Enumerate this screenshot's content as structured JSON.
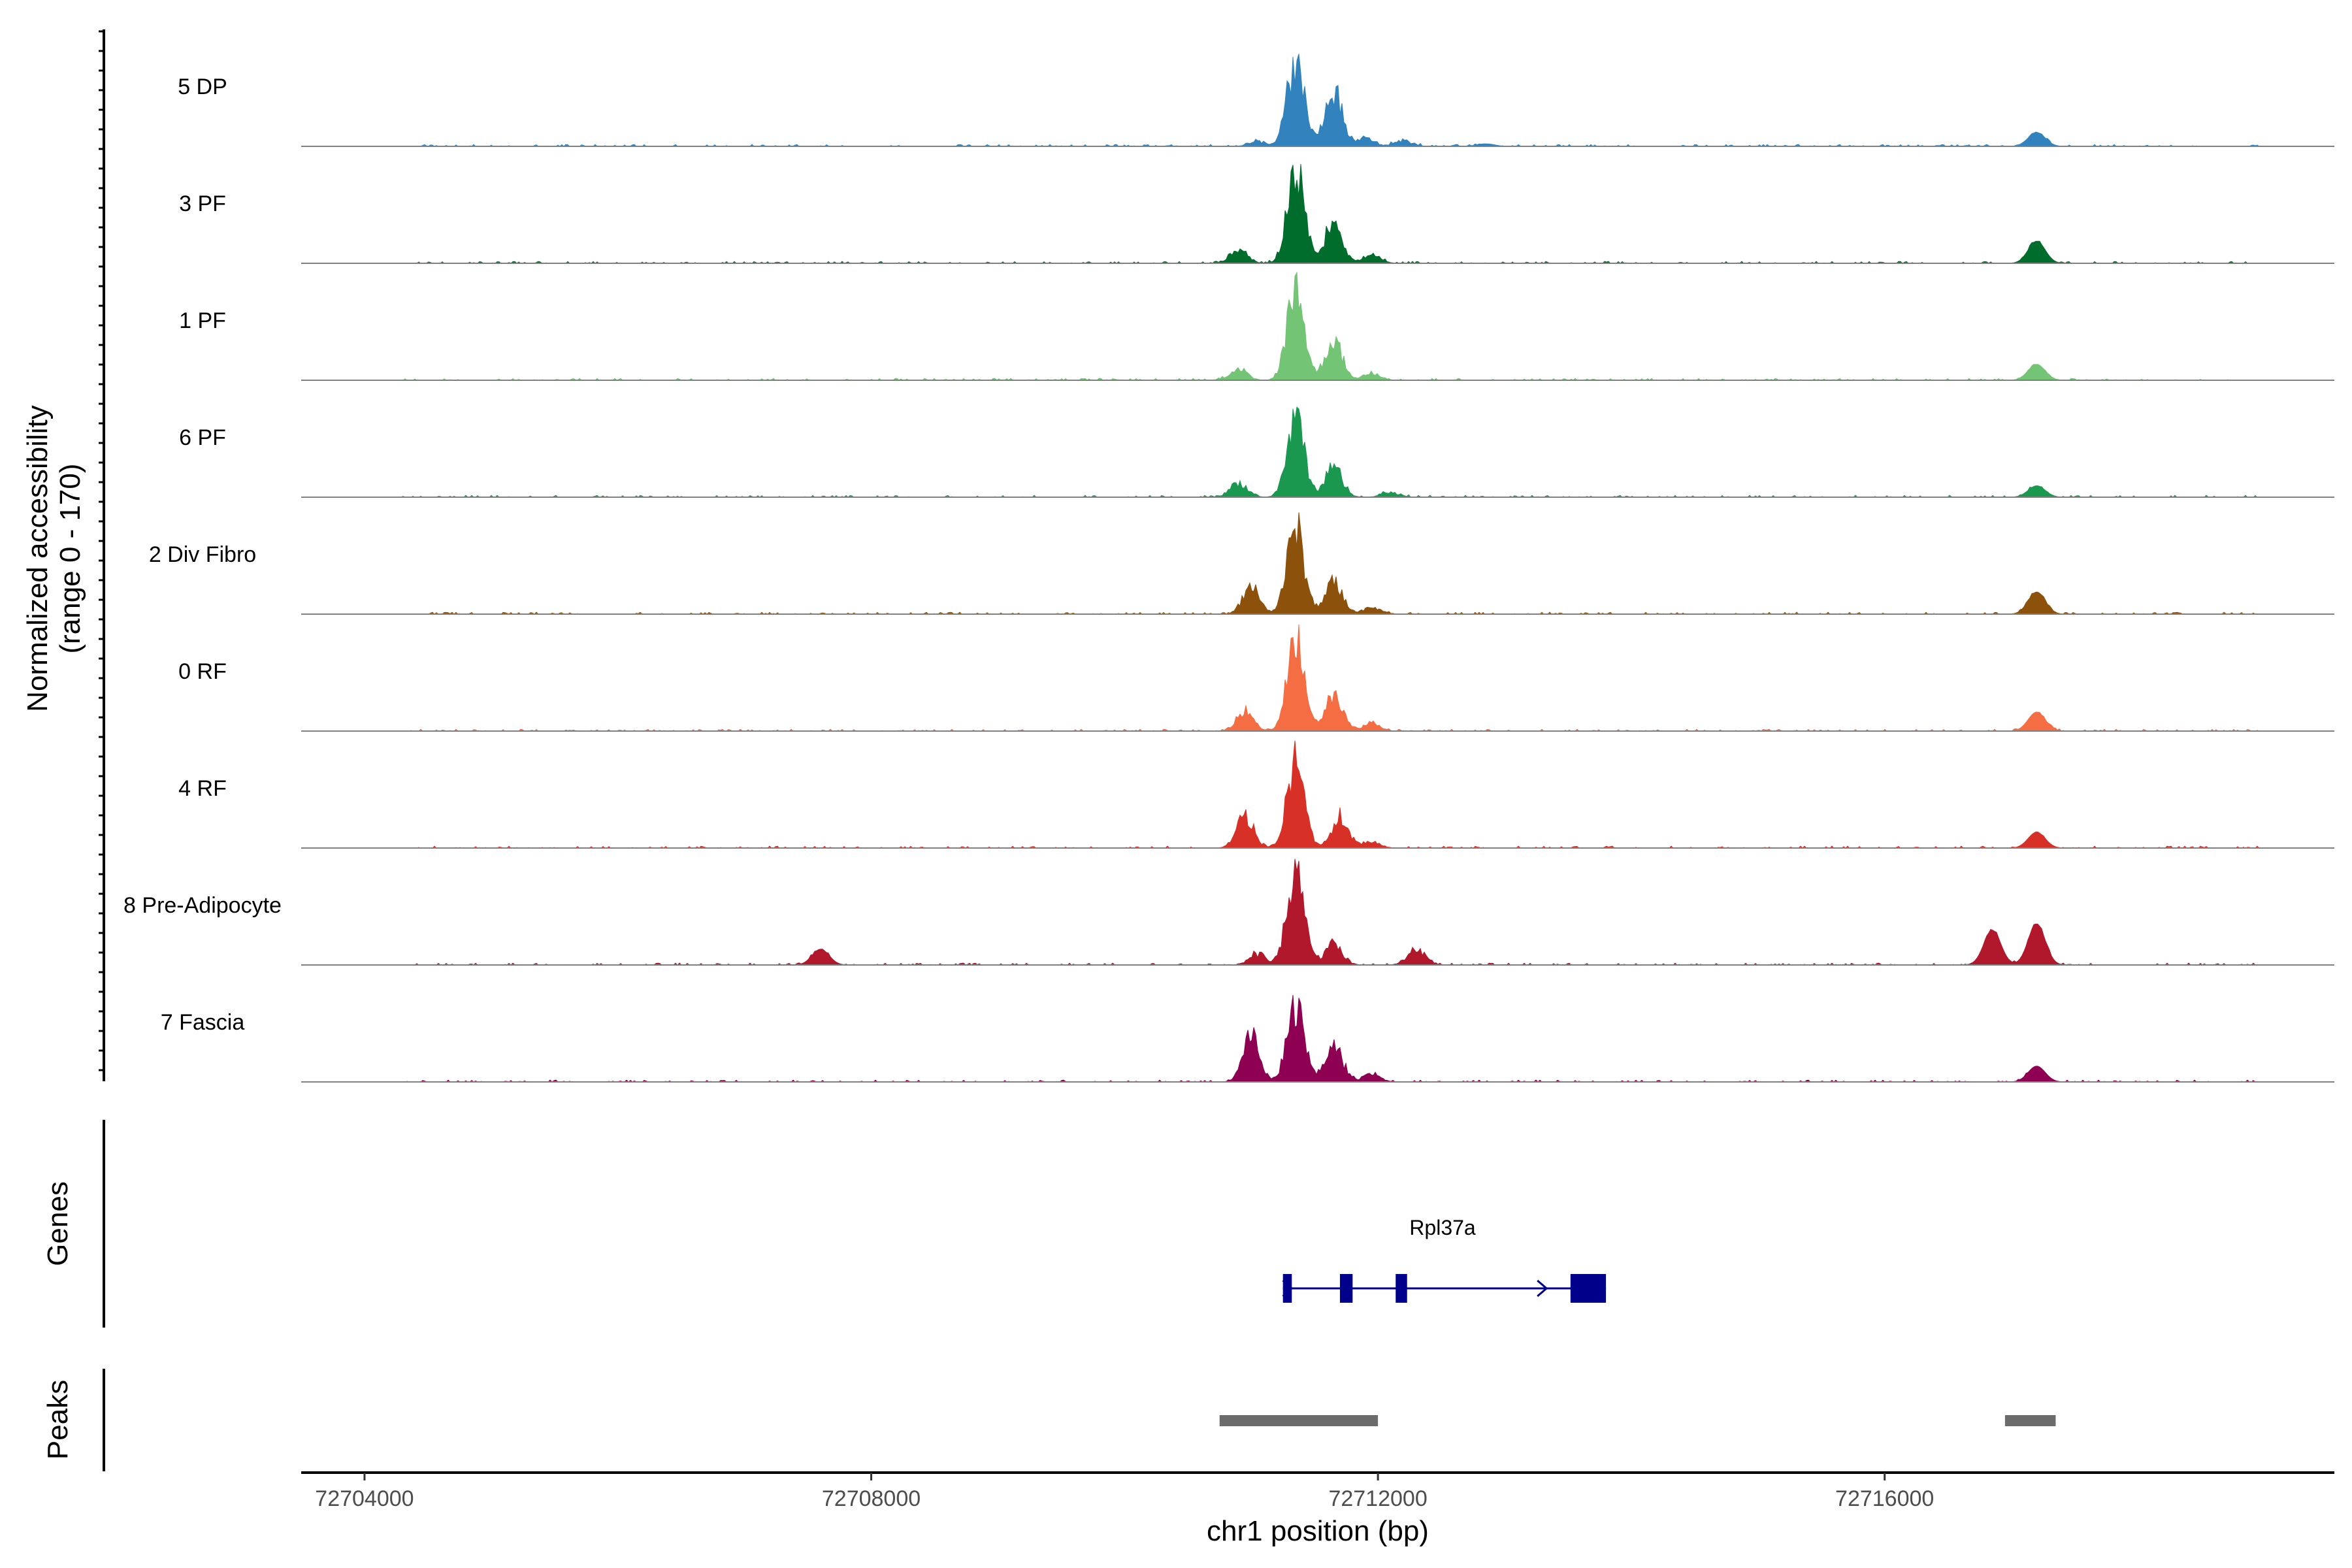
{
  "chart_data": {
    "type": "area",
    "title": "",
    "ylabel_line1": "Normalized accessibility",
    "ylabel_line2": "(range 0 - 170)",
    "y_range": [
      0,
      170
    ],
    "xlabel": "chr1 position (bp)",
    "x_range": [
      72703500,
      72719550
    ],
    "x_ticks": [
      72704000,
      72708000,
      72712000,
      72716000
    ],
    "x_tick_labels": [
      "72704000",
      "72708000",
      "72712000",
      "72716000"
    ],
    "tracks": [
      {
        "name": "5 DP",
        "color": "#3182bd"
      },
      {
        "name": "3 PF",
        "color": "#006d2c"
      },
      {
        "name": "1 PF",
        "color": "#74c476"
      },
      {
        "name": "6 PF",
        "color": "#1a9850"
      },
      {
        "name": "2 Div Fibro",
        "color": "#8c510a"
      },
      {
        "name": "0 RF",
        "color": "#f46d43"
      },
      {
        "name": "4 RF",
        "color": "#d73027"
      },
      {
        "name": "8 Pre-Adipocyte",
        "color": "#b2182b"
      },
      {
        "name": "7 Fascia",
        "color": "#8e0152"
      }
    ],
    "peak_profiles": [
      [
        [
          72711050,
          8
        ],
        [
          72711350,
          145
        ],
        [
          72711650,
          95
        ],
        [
          72711900,
          14
        ],
        [
          72712200,
          10
        ],
        [
          72712850,
          4
        ],
        [
          72717200,
          22
        ]
      ],
      [
        [
          72710900,
          22
        ],
        [
          72711350,
          160
        ],
        [
          72711650,
          72
        ],
        [
          72711950,
          14
        ],
        [
          72717200,
          35
        ]
      ],
      [
        [
          72710900,
          18
        ],
        [
          72711350,
          160
        ],
        [
          72711650,
          68
        ],
        [
          72711950,
          12
        ],
        [
          72717200,
          25
        ]
      ],
      [
        [
          72710900,
          25
        ],
        [
          72711350,
          135
        ],
        [
          72711650,
          52
        ],
        [
          72712100,
          8
        ],
        [
          72717200,
          18
        ]
      ],
      [
        [
          72711000,
          45
        ],
        [
          72711350,
          145
        ],
        [
          72711650,
          55
        ],
        [
          72711950,
          12
        ],
        [
          72717200,
          35
        ]
      ],
      [
        [
          72710950,
          35
        ],
        [
          72711350,
          150
        ],
        [
          72711650,
          62
        ],
        [
          72711950,
          14
        ],
        [
          72717200,
          30
        ]
      ],
      [
        [
          72710950,
          55
        ],
        [
          72711350,
          145
        ],
        [
          72711700,
          52
        ],
        [
          72711950,
          10
        ],
        [
          72717200,
          25
        ]
      ],
      [
        [
          72707600,
          25
        ],
        [
          72711050,
          18
        ],
        [
          72711350,
          160
        ],
        [
          72711650,
          38
        ],
        [
          72712300,
          28
        ],
        [
          72716850,
          55
        ],
        [
          72717200,
          65
        ]
      ],
      [
        [
          72711000,
          75
        ],
        [
          72711350,
          130
        ],
        [
          72711650,
          65
        ],
        [
          72711950,
          14
        ],
        [
          72717200,
          25
        ]
      ]
    ],
    "genes": {
      "track_label": "Genes",
      "name": "Rpl37a",
      "color": "#00008b",
      "strand": "+",
      "start": 72711250,
      "end": 72713800,
      "exons": [
        [
          72711250,
          72711320
        ],
        [
          72711700,
          72711800
        ],
        [
          72712140,
          72712230
        ],
        [
          72713520,
          72713800
        ]
      ]
    },
    "peaks": {
      "track_label": "Peaks",
      "color": "#6b6b6b",
      "regions": [
        [
          72710750,
          72712000
        ],
        [
          72716950,
          72717350
        ]
      ]
    }
  }
}
